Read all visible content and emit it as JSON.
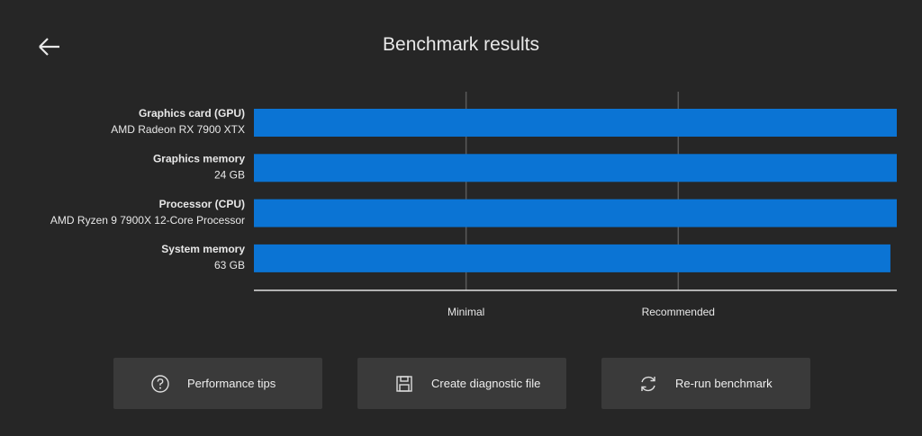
{
  "header": {
    "title": "Benchmark results"
  },
  "chart_data": {
    "type": "bar",
    "orientation": "horizontal",
    "categories": [
      "Graphics card (GPU)",
      "Graphics memory",
      "Processor (CPU)",
      "System memory"
    ],
    "category_details": [
      "AMD Radeon RX 7900 XTX",
      "24 GB",
      "AMD Ryzen 9 7900X 12-Core Processor",
      "63 GB"
    ],
    "values": [
      3.03,
      3.03,
      3.03,
      3.0
    ],
    "color": "#0b74d4",
    "xlim": [
      0,
      3.03
    ],
    "xticks": [
      {
        "value": 1,
        "label": "Minimal"
      },
      {
        "value": 2,
        "label": "Recommended"
      }
    ],
    "grid": true
  },
  "buttons": [
    {
      "label": "Performance tips"
    },
    {
      "label": "Create diagnostic file"
    },
    {
      "label": "Re-run benchmark"
    }
  ]
}
